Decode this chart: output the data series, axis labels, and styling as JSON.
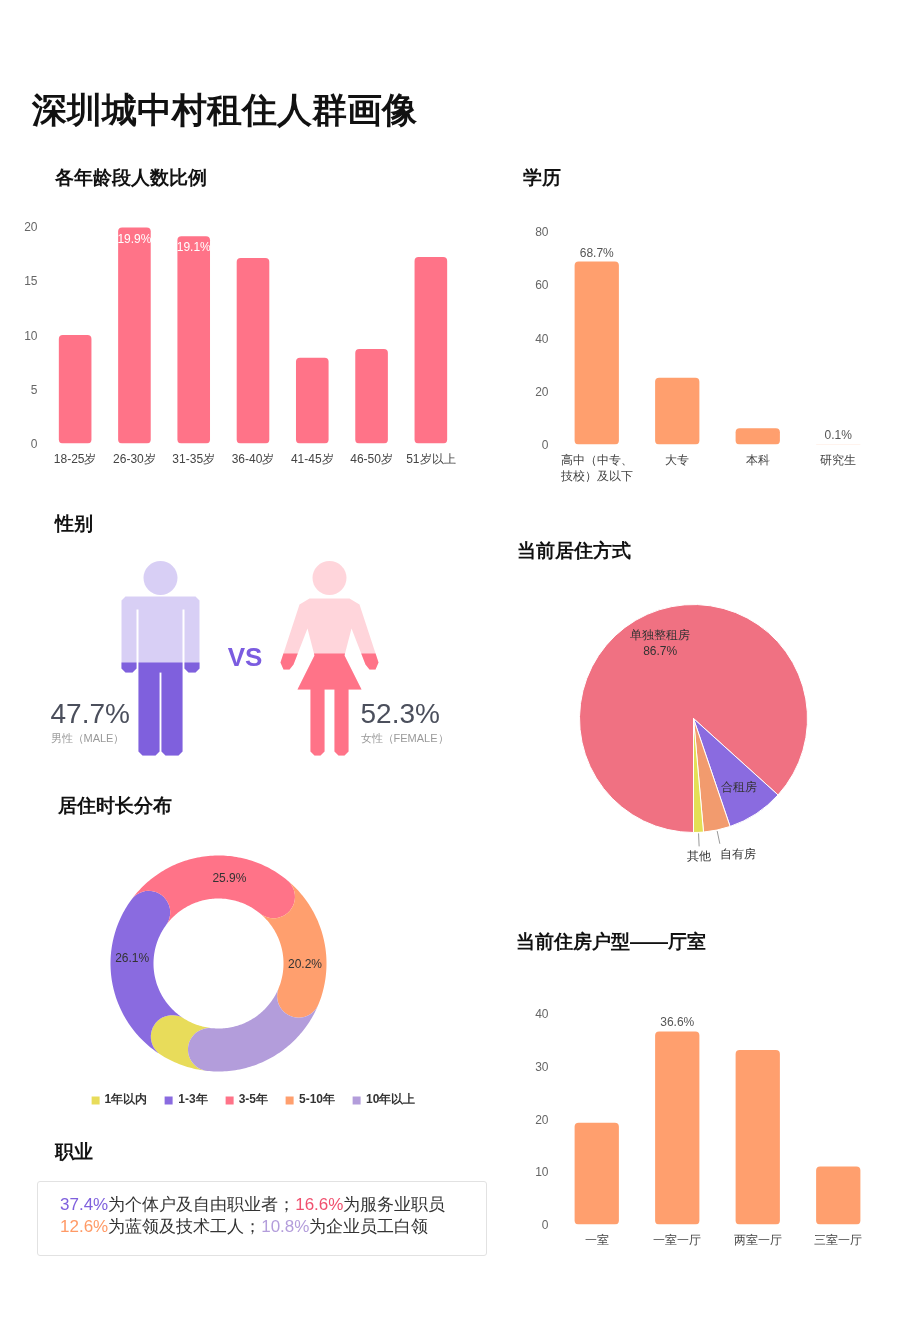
{
  "chart_data": [
    {
      "type": "other",
      "title": "深圳城中村租住人群画像"
    },
    {
      "type": "bar",
      "title": "各年龄段人数比例",
      "categories": [
        "18-25岁",
        "26-30岁",
        "31-35岁",
        "36-40岁",
        "41-45岁",
        "46-50岁",
        "51岁以上"
      ],
      "values": [
        10.0,
        19.9,
        19.1,
        17.1,
        7.9,
        8.7,
        17.2
      ],
      "color": "#ff7388",
      "value_labels": [
        null,
        "19.9%",
        "19.1%",
        null,
        null,
        null,
        null
      ],
      "ylim": [
        0,
        20
      ],
      "yticks": [
        0,
        5,
        10,
        15,
        20
      ]
    },
    {
      "type": "bar",
      "title": "学历",
      "categories": [
        "高中（中专、技校）及以下",
        "大专",
        "本科",
        "研究生"
      ],
      "values": [
        68.7,
        25.1,
        6.1,
        0.1
      ],
      "color": "#ff9f6e",
      "value_labels": [
        "68.7%",
        null,
        null,
        "0.1%"
      ],
      "ylim": [
        0,
        80
      ],
      "yticks": [
        0,
        20,
        40,
        60,
        80
      ]
    },
    {
      "type": "other",
      "title": "性别",
      "categories": [
        "男性（MALE）",
        "女性（FEMALE）"
      ],
      "values": [
        47.7,
        52.3
      ],
      "value_labels": [
        "47.7%",
        "52.3%"
      ],
      "colors": [
        "#7f60dd",
        "#ff7388"
      ],
      "annotations": [
        "VS"
      ]
    },
    {
      "type": "pie",
      "title": "当前居住方式",
      "categories": [
        "单独整租房",
        "合租房",
        "自有房",
        "其他"
      ],
      "values": [
        86.7,
        8.1,
        3.8,
        1.4
      ],
      "colors": [
        "#f07182",
        "#8a6be0",
        "#f29b6e",
        "#e4df55"
      ],
      "value_labels": [
        "86.7%",
        null,
        null,
        null
      ]
    },
    {
      "type": "donut",
      "title": "居住时长分布",
      "categories": [
        "1年以内",
        "1-3年",
        "3-5年",
        "5-10年",
        "10年以上"
      ],
      "values": [
        7.3,
        26.1,
        25.9,
        20.2,
        20.5
      ],
      "colors": [
        "#e8dc5a",
        "#8a6be0",
        "#ff7388",
        "#ff9f6e",
        "#b39ddb"
      ],
      "value_labels": [
        null,
        "26.1%",
        "25.9%",
        "20.2%",
        null
      ],
      "legend": "bottom"
    },
    {
      "type": "bar",
      "title": "当前住房户型——厅室",
      "categories": [
        "一室",
        "一室一厅",
        "两室一厅",
        "三室一厅"
      ],
      "values": [
        19.3,
        36.6,
        33.1,
        11.0
      ],
      "color": "#ff9f6e",
      "value_labels": [
        null,
        "36.6%",
        null,
        null
      ],
      "ylim": [
        0,
        40
      ],
      "yticks": [
        0,
        10,
        20,
        30,
        40
      ]
    },
    {
      "type": "other",
      "title": "职业",
      "annotations": [
        "37.4%为个体户及自由职业者；16.6%为服务业职员",
        "12.6%为蓝领及技术工人；10.8%为企业员工白领"
      ],
      "colors": [
        "#7f60dd",
        "#f0506e",
        "#ff9a66",
        "#b39ddb"
      ]
    }
  ]
}
